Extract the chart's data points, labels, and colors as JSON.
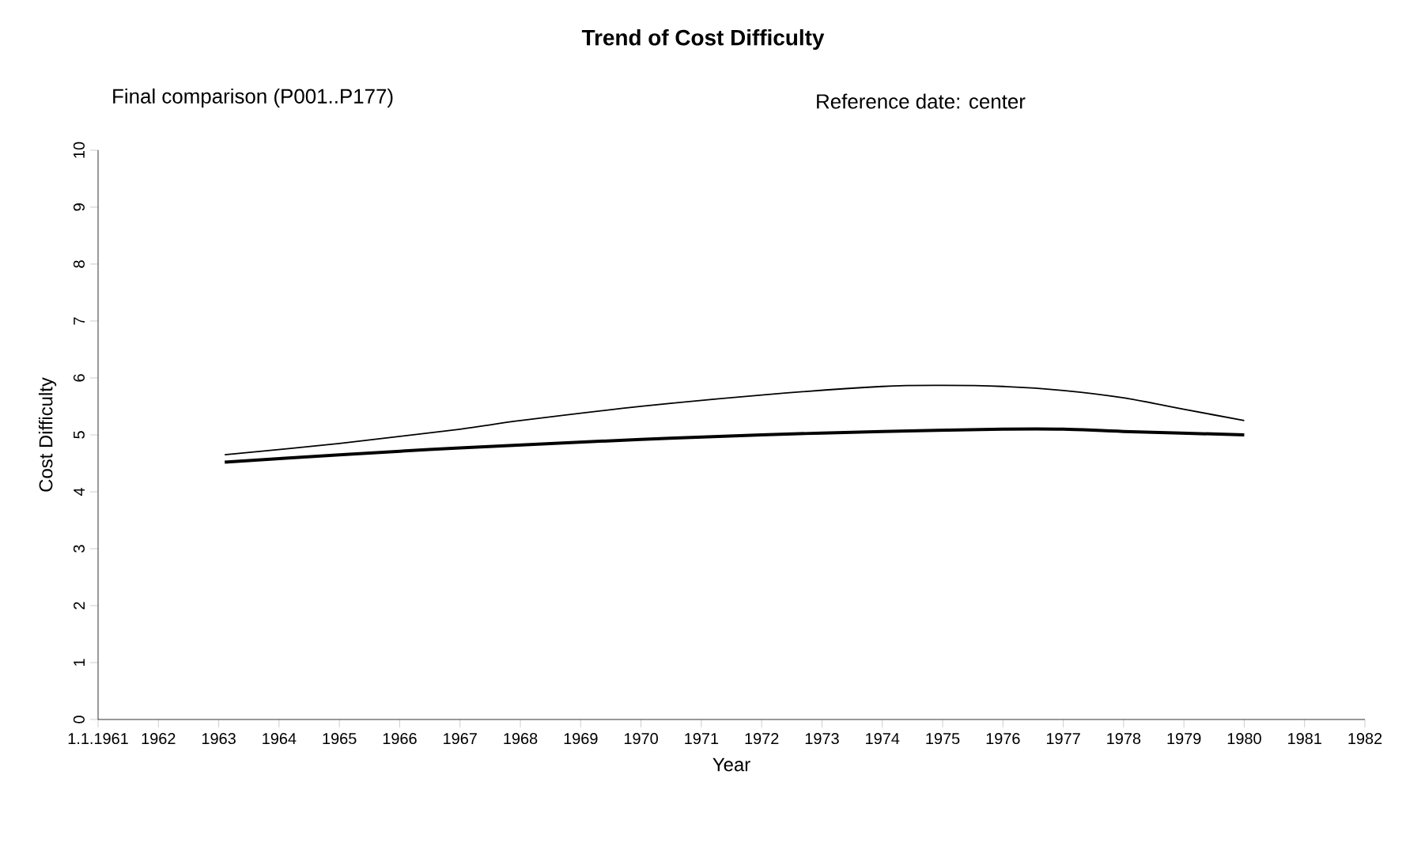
{
  "chart_data": {
    "type": "line",
    "title": "Trend of Cost Difficulty",
    "subtitle": "Final comparison (P001..P177)",
    "annotations": [
      "Reference date: center"
    ],
    "xlabel": "Year",
    "ylabel": "Cost Difficulty",
    "xlim": [
      1961,
      1982
    ],
    "ylim": [
      0,
      10
    ],
    "xticks": [
      {
        "value": 1961,
        "label": "1.1.1961"
      },
      1962,
      1963,
      1964,
      1965,
      1966,
      1967,
      1968,
      1969,
      1970,
      1971,
      1972,
      1973,
      1974,
      1975,
      1976,
      1977,
      1978,
      1979,
      1980,
      1981,
      1982
    ],
    "yticks": [
      0,
      1,
      2,
      3,
      4,
      5,
      6,
      7,
      8,
      9,
      10
    ],
    "grid": false,
    "marker": "none",
    "line_style": "solid",
    "series": [
      {
        "color": "#000000",
        "x": [
          1963.1,
          1965,
          1967,
          1968,
          1970,
          1972,
          1974,
          1975,
          1976,
          1977,
          1978,
          1979,
          1980
        ],
        "values": [
          4.65,
          4.85,
          5.1,
          5.25,
          5.5,
          5.7,
          5.85,
          5.87,
          5.85,
          5.78,
          5.65,
          5.45,
          5.25
        ]
      },
      {
        "color": "#000000",
        "x": [
          1963.1,
          1965,
          1967,
          1970,
          1972,
          1974,
          1976,
          1977,
          1978,
          1980
        ],
        "values": [
          4.52,
          4.65,
          4.77,
          4.92,
          5.0,
          5.06,
          5.1,
          5.1,
          5.06,
          5.0
        ]
      }
    ]
  }
}
